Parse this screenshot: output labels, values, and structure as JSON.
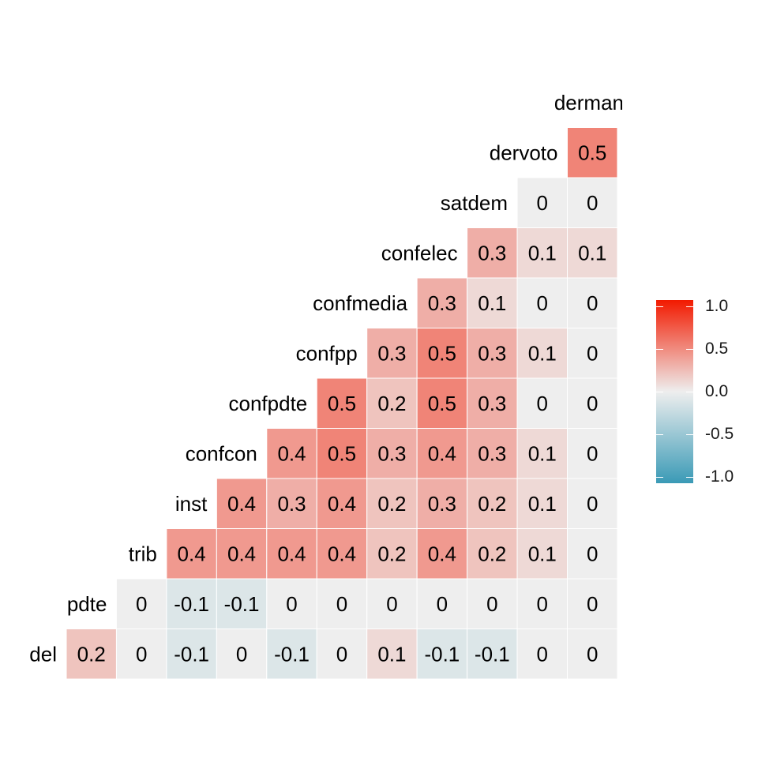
{
  "chart_data": {
    "type": "heatmap",
    "title": "",
    "xlabel": "",
    "ylabel": "",
    "variables": [
      "del",
      "pdte",
      "trib",
      "inst",
      "confcon",
      "confpdte",
      "confpp",
      "confmedia",
      "confelec",
      "satdem",
      "dervoto",
      "derman"
    ],
    "diagonal_labels": [
      "del",
      "pdte",
      "trib",
      "inst",
      "confcon",
      "confpdte",
      "confpp",
      "confmedia",
      "confelec",
      "satdem",
      "dervoto",
      "derman"
    ],
    "cells": [
      {
        "row": "del",
        "col": "pdte",
        "value": 0.2,
        "label": "0.2"
      },
      {
        "row": "del",
        "col": "trib",
        "value": 0,
        "label": "0"
      },
      {
        "row": "del",
        "col": "inst",
        "value": -0.1,
        "label": "-0.1"
      },
      {
        "row": "del",
        "col": "confcon",
        "value": 0,
        "label": "0"
      },
      {
        "row": "del",
        "col": "confpdte",
        "value": -0.1,
        "label": "-0.1"
      },
      {
        "row": "del",
        "col": "confpp",
        "value": 0,
        "label": "0"
      },
      {
        "row": "del",
        "col": "confmedia",
        "value": 0.1,
        "label": "0.1"
      },
      {
        "row": "del",
        "col": "confelec",
        "value": -0.1,
        "label": "-0.1"
      },
      {
        "row": "del",
        "col": "satdem",
        "value": -0.1,
        "label": "-0.1"
      },
      {
        "row": "del",
        "col": "dervoto",
        "value": 0,
        "label": "0"
      },
      {
        "row": "del",
        "col": "derman",
        "value": 0,
        "label": "0"
      },
      {
        "row": "pdte",
        "col": "trib",
        "value": 0,
        "label": "0"
      },
      {
        "row": "pdte",
        "col": "inst",
        "value": -0.1,
        "label": "-0.1"
      },
      {
        "row": "pdte",
        "col": "confcon",
        "value": -0.1,
        "label": "-0.1"
      },
      {
        "row": "pdte",
        "col": "confpdte",
        "value": 0,
        "label": "0"
      },
      {
        "row": "pdte",
        "col": "confpp",
        "value": 0,
        "label": "0"
      },
      {
        "row": "pdte",
        "col": "confmedia",
        "value": 0,
        "label": "0"
      },
      {
        "row": "pdte",
        "col": "confelec",
        "value": 0,
        "label": "0"
      },
      {
        "row": "pdte",
        "col": "satdem",
        "value": 0,
        "label": "0"
      },
      {
        "row": "pdte",
        "col": "dervoto",
        "value": 0,
        "label": "0"
      },
      {
        "row": "pdte",
        "col": "derman",
        "value": 0,
        "label": "0"
      },
      {
        "row": "trib",
        "col": "inst",
        "value": 0.4,
        "label": "0.4"
      },
      {
        "row": "trib",
        "col": "confcon",
        "value": 0.4,
        "label": "0.4"
      },
      {
        "row": "trib",
        "col": "confpdte",
        "value": 0.4,
        "label": "0.4"
      },
      {
        "row": "trib",
        "col": "confpp",
        "value": 0.4,
        "label": "0.4"
      },
      {
        "row": "trib",
        "col": "confmedia",
        "value": 0.2,
        "label": "0.2"
      },
      {
        "row": "trib",
        "col": "confelec",
        "value": 0.4,
        "label": "0.4"
      },
      {
        "row": "trib",
        "col": "satdem",
        "value": 0.2,
        "label": "0.2"
      },
      {
        "row": "trib",
        "col": "dervoto",
        "value": 0.1,
        "label": "0.1"
      },
      {
        "row": "trib",
        "col": "derman",
        "value": 0,
        "label": "0"
      },
      {
        "row": "inst",
        "col": "confcon",
        "value": 0.4,
        "label": "0.4"
      },
      {
        "row": "inst",
        "col": "confpdte",
        "value": 0.3,
        "label": "0.3"
      },
      {
        "row": "inst",
        "col": "confpp",
        "value": 0.4,
        "label": "0.4"
      },
      {
        "row": "inst",
        "col": "confmedia",
        "value": 0.2,
        "label": "0.2"
      },
      {
        "row": "inst",
        "col": "confelec",
        "value": 0.3,
        "label": "0.3"
      },
      {
        "row": "inst",
        "col": "satdem",
        "value": 0.2,
        "label": "0.2"
      },
      {
        "row": "inst",
        "col": "dervoto",
        "value": 0.1,
        "label": "0.1"
      },
      {
        "row": "inst",
        "col": "derman",
        "value": 0,
        "label": "0"
      },
      {
        "row": "confcon",
        "col": "confpdte",
        "value": 0.4,
        "label": "0.4"
      },
      {
        "row": "confcon",
        "col": "confpp",
        "value": 0.5,
        "label": "0.5"
      },
      {
        "row": "confcon",
        "col": "confmedia",
        "value": 0.3,
        "label": "0.3"
      },
      {
        "row": "confcon",
        "col": "confelec",
        "value": 0.4,
        "label": "0.4"
      },
      {
        "row": "confcon",
        "col": "satdem",
        "value": 0.3,
        "label": "0.3"
      },
      {
        "row": "confcon",
        "col": "dervoto",
        "value": 0.1,
        "label": "0.1"
      },
      {
        "row": "confcon",
        "col": "derman",
        "value": 0,
        "label": "0"
      },
      {
        "row": "confpdte",
        "col": "confpp",
        "value": 0.5,
        "label": "0.5"
      },
      {
        "row": "confpdte",
        "col": "confmedia",
        "value": 0.2,
        "label": "0.2"
      },
      {
        "row": "confpdte",
        "col": "confelec",
        "value": 0.5,
        "label": "0.5"
      },
      {
        "row": "confpdte",
        "col": "satdem",
        "value": 0.3,
        "label": "0.3"
      },
      {
        "row": "confpdte",
        "col": "dervoto",
        "value": 0,
        "label": "0"
      },
      {
        "row": "confpdte",
        "col": "derman",
        "value": 0,
        "label": "0"
      },
      {
        "row": "confpp",
        "col": "confmedia",
        "value": 0.3,
        "label": "0.3"
      },
      {
        "row": "confpp",
        "col": "confelec",
        "value": 0.5,
        "label": "0.5"
      },
      {
        "row": "confpp",
        "col": "satdem",
        "value": 0.3,
        "label": "0.3"
      },
      {
        "row": "confpp",
        "col": "dervoto",
        "value": 0.1,
        "label": "0.1"
      },
      {
        "row": "confpp",
        "col": "derman",
        "value": 0,
        "label": "0"
      },
      {
        "row": "confmedia",
        "col": "confelec",
        "value": 0.3,
        "label": "0.3"
      },
      {
        "row": "confmedia",
        "col": "satdem",
        "value": 0.1,
        "label": "0.1"
      },
      {
        "row": "confmedia",
        "col": "dervoto",
        "value": 0,
        "label": "0"
      },
      {
        "row": "confmedia",
        "col": "derman",
        "value": 0,
        "label": "0"
      },
      {
        "row": "confelec",
        "col": "satdem",
        "value": 0.3,
        "label": "0.3"
      },
      {
        "row": "confelec",
        "col": "dervoto",
        "value": 0.1,
        "label": "0.1"
      },
      {
        "row": "confelec",
        "col": "derman",
        "value": 0.1,
        "label": "0.1"
      },
      {
        "row": "satdem",
        "col": "dervoto",
        "value": 0,
        "label": "0"
      },
      {
        "row": "satdem",
        "col": "derman",
        "value": 0,
        "label": "0"
      },
      {
        "row": "dervoto",
        "col": "derman",
        "value": 0.5,
        "label": "0.5"
      }
    ],
    "legend": {
      "position": "right",
      "ticks": [
        "1.0",
        "0.5",
        "0.0",
        "-0.5",
        "-1.0"
      ],
      "tick_values": [
        1.0,
        0.5,
        0.0,
        -0.5,
        -1.0
      ],
      "range": [
        -1.0,
        1.0
      ]
    },
    "colors": {
      "low": "#3a9ab6",
      "mid": "#eeeeee",
      "high": "#f21a00"
    },
    "grid": false
  }
}
